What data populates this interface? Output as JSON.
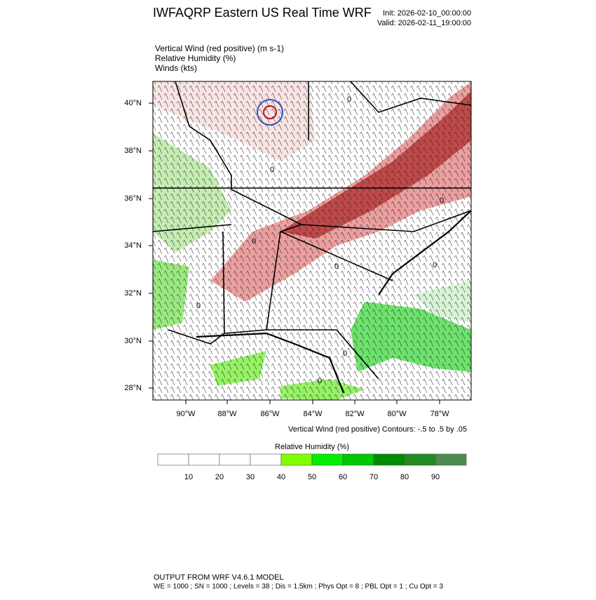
{
  "header": {
    "title": "IWFAQRP Eastern US Real Time WRF",
    "init": "Init: 2026-02-10_00:00:00",
    "valid": "Valid: 2026-02-11_19:00:00"
  },
  "fields": [
    "Vertical Wind (red positive)   (m s-1)",
    "Relative Humidity   (%)",
    "Winds   (kts)"
  ],
  "map": {
    "lat_labels": [
      "40°N",
      "38°N",
      "36°N",
      "34°N",
      "32°N",
      "30°N",
      "28°N"
    ],
    "lon_labels": [
      "90°W",
      "88°W",
      "86°W",
      "84°W",
      "82°W",
      "80°W",
      "78°W"
    ],
    "contour_labels": [
      "0",
      "0",
      "0",
      "0",
      "0",
      "0",
      "0",
      "0",
      "0"
    ],
    "contour_note": "Vertical Wind (red positive) Contours: -.5 to .5 by .05"
  },
  "colorbar": {
    "title": "Relative Humidity  (%)",
    "labels": [
      "10",
      "20",
      "30",
      "40",
      "50",
      "60",
      "70",
      "80",
      "90"
    ],
    "colors": [
      "#ffffff",
      "#ffffff",
      "#ffffff",
      "#ffffff",
      "#80ff00",
      "#00f000",
      "#00c800",
      "#008c00",
      "#228b22",
      "#4f8a4f"
    ]
  },
  "footer": {
    "line1": "OUTPUT FROM WRF V4.6.1 MODEL",
    "line2": "WE = 1000 ; SN = 1000 ; Levels = 38 ; Dis = 1.5km ; Phys Opt = 8 ; PBL Opt = 1 ; Cu Opt = 3"
  }
}
